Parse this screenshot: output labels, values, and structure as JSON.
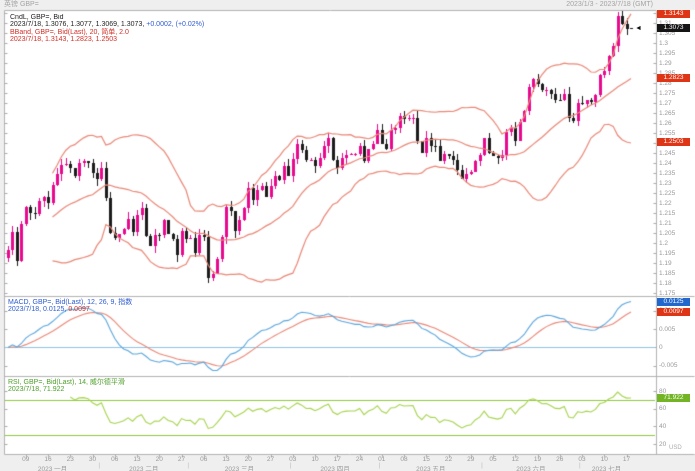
{
  "header": {
    "instrument_label": "英镑 GBP=",
    "date_range": "2023/1/3 - 2023/7/18 (GMT)"
  },
  "price_panel": {
    "legend_line1": "CndL, GBP=, Bid",
    "legend_line2_black": "2023/7/18, 1.3076, 1.3077, 1.3069, 1.3073,",
    "legend_line2_blue": "+0.0002, (+0.02%)",
    "legend_line3": "BBand, GBP=, Bid(Last), 20, 简单, 2.0",
    "legend_line4": "2023/7/18, 1.3143, 1.2823, 1.2503",
    "badges": {
      "bb_upper": "1.3143",
      "last": "1.3073",
      "bb_middle": "1.2823",
      "bb_lower": "1.2503"
    },
    "last_marker": "◄",
    "axis": {
      "min": 1.174,
      "max": 1.3165,
      "tick_step": 0.005
    }
  },
  "macd_panel": {
    "legend_line1": "MACD, GBP=, Bid(Last), 12, 26, 9, 指数",
    "legend_line2_blue": "2023/7/18, 0.0125,",
    "legend_line2_red": "0.0097",
    "badges": {
      "macd": "0.0125",
      "signal": "0.0097"
    },
    "axis": {
      "min": -0.0075,
      "max": 0.014,
      "tick_step": 0.005
    }
  },
  "rsi_panel": {
    "legend_line1": "RSI, GBP=, Bid(Last), 14, 威尔德平滑",
    "legend_line2": "2023/7/18, 71.922",
    "badges": {
      "rsi": "71.922"
    },
    "axis": {
      "min": 10,
      "max": 97,
      "tick_step": 20
    },
    "levels": [
      70,
      30
    ]
  },
  "x_axis": {
    "month_labels": [
      "2023 一月",
      "2023 二月",
      "2023 三月",
      "2023 四月",
      "2023 五月",
      "2023 六月",
      "2023 七月"
    ]
  },
  "footer_currency": "USD",
  "colors": {
    "panel_bg": "#ffffff",
    "chrome_bg": "#efefef",
    "border": "#b2b2b2",
    "tick": "#aaaaaa",
    "up_candle": "#e7098e",
    "down_candle": "#1c1c1c",
    "bollinger": "#e98878",
    "macd_line": "#5ca6dc",
    "macd_signal": "#e98878",
    "macd_zero": "#90c4e4",
    "rsi_line": "#a6d44e",
    "rsi_level": "#90c83e",
    "badge_red": "#dd3515",
    "badge_black": "#151515",
    "badge_blue": "#2268cc",
    "badge_green": "#72b424",
    "axis_text": "#999999"
  },
  "chart_data": {
    "type": "candlestick+indicators",
    "symbol": "GBP=",
    "quote_type": "Bid",
    "interval": "daily",
    "start_date": "2023-01-03",
    "end_date": "2023-07-18",
    "closes": [
      1.1966,
      1.2054,
      1.191,
      1.2093,
      1.2181,
      1.2152,
      1.2143,
      1.221,
      1.223,
      1.2198,
      1.2288,
      1.2343,
      1.2391,
      1.2396,
      1.2375,
      1.2337,
      1.2401,
      1.241,
      1.2398,
      1.2348,
      1.2318,
      1.2377,
      1.2224,
      1.205,
      1.2024,
      1.2045,
      1.2072,
      1.2121,
      1.2057,
      1.2139,
      1.2175,
      1.2034,
      1.1986,
      1.204,
      1.2038,
      1.2113,
      1.2045,
      1.2022,
      1.1942,
      1.2061,
      1.2022,
      1.2026,
      1.1948,
      1.204,
      1.2031,
      1.1825,
      1.1843,
      1.1922,
      1.203,
      1.2182,
      1.2158,
      1.206,
      1.2113,
      1.2175,
      1.2276,
      1.2216,
      1.2267,
      1.2287,
      1.223,
      1.2287,
      1.2337,
      1.2313,
      1.2385,
      1.2337,
      1.2418,
      1.2497,
      1.2465,
      1.2415,
      1.2417,
      1.2384,
      1.2425,
      1.2484,
      1.2523,
      1.2414,
      1.2375,
      1.2425,
      1.244,
      1.2443,
      1.2443,
      1.2486,
      1.2408,
      1.2468,
      1.2497,
      1.2566,
      1.2497,
      1.247,
      1.2566,
      1.2575,
      1.2635,
      1.2619,
      1.2623,
      1.2625,
      1.251,
      1.2452,
      1.2527,
      1.2487,
      1.2486,
      1.241,
      1.2446,
      1.2436,
      1.2413,
      1.2365,
      1.2321,
      1.2345,
      1.2354,
      1.2408,
      1.2441,
      1.2524,
      1.2452,
      1.2436,
      1.2423,
      1.244,
      1.2557,
      1.2575,
      1.2511,
      1.2604,
      1.2661,
      1.278,
      1.2819,
      1.2796,
      1.2763,
      1.2766,
      1.2744,
      1.2715,
      1.2713,
      1.2744,
      1.2624,
      1.2612,
      1.2701,
      1.2693,
      1.2713,
      1.2704,
      1.274,
      1.2839,
      1.2859,
      1.2933,
      1.2983,
      1.3133,
      1.3093,
      1.3071,
      1.3073
    ],
    "last_candle": {
      "date": "2023/7/18",
      "open": 1.3076,
      "high": 1.3077,
      "low": 1.3069,
      "close": 1.3073,
      "change": "+0.0002",
      "change_pct": "+0.02%"
    },
    "indicators": {
      "bollinger": {
        "period": 20,
        "type": "简单",
        "stdev": 2.0,
        "last_upper": 1.3143,
        "last_middle": 1.2823,
        "last_lower": 1.2503
      },
      "macd": {
        "fast": 12,
        "slow": 26,
        "signal": 9,
        "type": "指数",
        "last_macd": 0.0125,
        "last_signal": 0.0097
      },
      "rsi": {
        "period": 14,
        "smoothing": "威尔德平滑",
        "last": 71.922,
        "levels": [
          70,
          30
        ]
      }
    }
  }
}
